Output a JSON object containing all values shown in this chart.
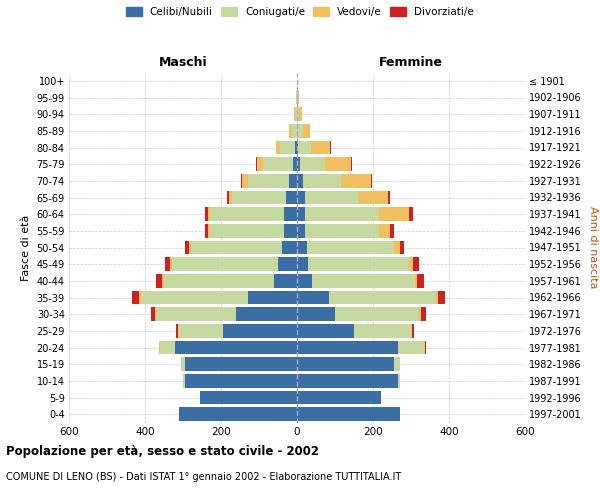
{
  "age_groups": [
    "0-4",
    "5-9",
    "10-14",
    "15-19",
    "20-24",
    "25-29",
    "30-34",
    "35-39",
    "40-44",
    "45-49",
    "50-54",
    "55-59",
    "60-64",
    "65-69",
    "70-74",
    "75-79",
    "80-84",
    "85-89",
    "90-94",
    "95-99",
    "100+"
  ],
  "birth_years": [
    "1997-2001",
    "1992-1996",
    "1987-1991",
    "1982-1986",
    "1977-1981",
    "1972-1976",
    "1967-1971",
    "1962-1966",
    "1957-1961",
    "1952-1956",
    "1947-1951",
    "1942-1946",
    "1937-1941",
    "1932-1936",
    "1927-1931",
    "1922-1926",
    "1917-1921",
    "1912-1916",
    "1907-1911",
    "1902-1906",
    "≤ 1901"
  ],
  "maschi": {
    "celibi": [
      310,
      255,
      295,
      295,
      320,
      195,
      160,
      130,
      60,
      50,
      40,
      35,
      35,
      30,
      20,
      10,
      5,
      0,
      0,
      0,
      0
    ],
    "coniugati": [
      0,
      0,
      5,
      10,
      40,
      115,
      210,
      280,
      290,
      280,
      240,
      195,
      195,
      140,
      110,
      80,
      40,
      15,
      5,
      2,
      0
    ],
    "vedovi": [
      0,
      0,
      0,
      0,
      2,
      3,
      5,
      5,
      5,
      5,
      5,
      5,
      5,
      10,
      15,
      15,
      10,
      5,
      3,
      0,
      0
    ],
    "divorziati": [
      0,
      0,
      0,
      0,
      2,
      5,
      10,
      18,
      15,
      12,
      10,
      8,
      8,
      3,
      3,
      2,
      0,
      0,
      0,
      0,
      0
    ]
  },
  "femmine": {
    "nubili": [
      270,
      220,
      265,
      255,
      265,
      150,
      100,
      85,
      40,
      30,
      25,
      20,
      20,
      20,
      15,
      8,
      3,
      0,
      0,
      0,
      0
    ],
    "coniugate": [
      0,
      0,
      5,
      15,
      70,
      150,
      220,
      280,
      270,
      265,
      230,
      195,
      195,
      140,
      100,
      65,
      35,
      15,
      5,
      3,
      0
    ],
    "vedove": [
      0,
      0,
      0,
      0,
      2,
      3,
      5,
      5,
      5,
      10,
      15,
      30,
      80,
      80,
      80,
      70,
      50,
      20,
      8,
      2,
      0
    ],
    "divorziate": [
      0,
      0,
      0,
      0,
      2,
      5,
      15,
      20,
      18,
      15,
      12,
      10,
      10,
      5,
      3,
      2,
      2,
      0,
      0,
      0,
      0
    ]
  },
  "colors": {
    "celibi": "#3b6ea5",
    "coniugati": "#c5d9a0",
    "vedovi": "#f0c060",
    "divorziati": "#cc2222"
  },
  "xlim": 600,
  "title": "Popolazione per età, sesso e stato civile - 2002",
  "subtitle": "COMUNE DI LENO (BS) - Dati ISTAT 1° gennaio 2002 - Elaborazione TUTTITALIA.IT",
  "ylabel_left": "Fasce di età",
  "ylabel_right": "Anni di nascita",
  "label_maschi": "Maschi",
  "label_femmine": "Femmine"
}
